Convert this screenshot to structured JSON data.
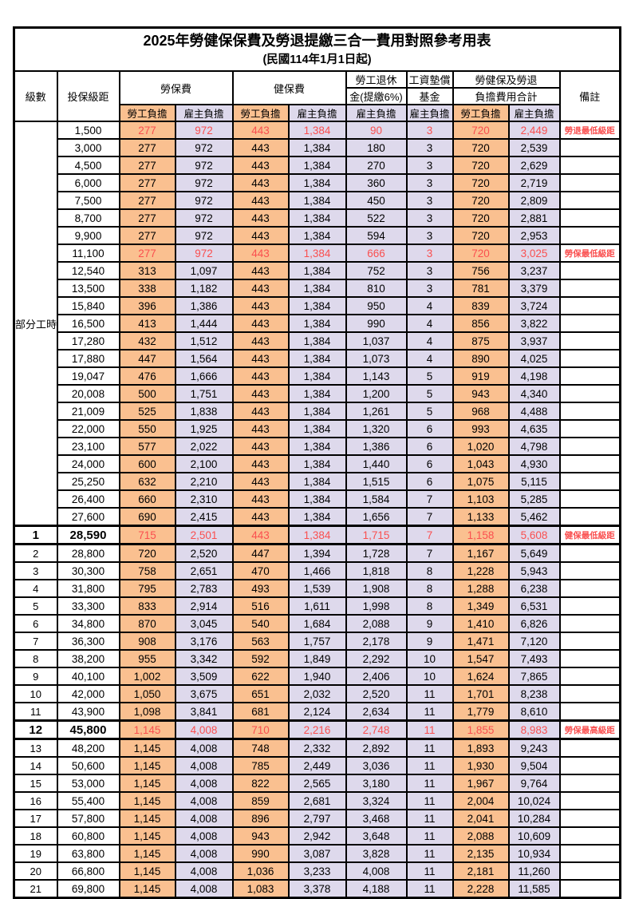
{
  "title": "2025年勞健保保費及勞退提繳三合一費用對照參考用表",
  "subtitle": "(民國114年1月1日起)",
  "header": {
    "level": "級數",
    "bracket": "投保級距",
    "labor_insurance": "勞保費",
    "health_insurance": "健保費",
    "pension_line1": "勞工退休",
    "pension_line2": "金(提繳6%)",
    "wage_fund_line1": "工資墊償",
    "wage_fund_line2": "基金",
    "total_line1": "勞健保及勞退",
    "total_line2": "負擔費用合計",
    "employee_burden": "勞工負擔",
    "employer_burden": "雇主負擔",
    "remark": "備註"
  },
  "part_time": {
    "label": "部分工時",
    "row_span": 23
  },
  "colors": {
    "employee_bg": "#FAC090",
    "employer_bg": "#DED9EC",
    "highlight_red": "#FA4F4F",
    "border": "#000000"
  },
  "rows": [
    {
      "level": "",
      "bracket": "1,500",
      "values": [
        "277",
        "972",
        "443",
        "1,384",
        "90",
        "3",
        "720",
        "2,449"
      ],
      "remark": "勞退最低級距",
      "red": true,
      "bold": false
    },
    {
      "level": "",
      "bracket": "3,000",
      "values": [
        "277",
        "972",
        "443",
        "1,384",
        "180",
        "3",
        "720",
        "2,539"
      ],
      "remark": "",
      "red": false,
      "bold": false
    },
    {
      "level": "",
      "bracket": "4,500",
      "values": [
        "277",
        "972",
        "443",
        "1,384",
        "270",
        "3",
        "720",
        "2,629"
      ],
      "remark": "",
      "red": false,
      "bold": false
    },
    {
      "level": "",
      "bracket": "6,000",
      "values": [
        "277",
        "972",
        "443",
        "1,384",
        "360",
        "3",
        "720",
        "2,719"
      ],
      "remark": "",
      "red": false,
      "bold": false
    },
    {
      "level": "",
      "bracket": "7,500",
      "values": [
        "277",
        "972",
        "443",
        "1,384",
        "450",
        "3",
        "720",
        "2,809"
      ],
      "remark": "",
      "red": false,
      "bold": false
    },
    {
      "level": "",
      "bracket": "8,700",
      "values": [
        "277",
        "972",
        "443",
        "1,384",
        "522",
        "3",
        "720",
        "2,881"
      ],
      "remark": "",
      "red": false,
      "bold": false
    },
    {
      "level": "",
      "bracket": "9,900",
      "values": [
        "277",
        "972",
        "443",
        "1,384",
        "594",
        "3",
        "720",
        "2,953"
      ],
      "remark": "",
      "red": false,
      "bold": false
    },
    {
      "level": "",
      "bracket": "11,100",
      "values": [
        "277",
        "972",
        "443",
        "1,384",
        "666",
        "3",
        "720",
        "3,025"
      ],
      "remark": "勞保最低級距",
      "red": true,
      "bold": false
    },
    {
      "level": "",
      "bracket": "12,540",
      "values": [
        "313",
        "1,097",
        "443",
        "1,384",
        "752",
        "3",
        "756",
        "3,237"
      ],
      "remark": "",
      "red": false,
      "bold": false
    },
    {
      "level": "",
      "bracket": "13,500",
      "values": [
        "338",
        "1,182",
        "443",
        "1,384",
        "810",
        "3",
        "781",
        "3,379"
      ],
      "remark": "",
      "red": false,
      "bold": false
    },
    {
      "level": "",
      "bracket": "15,840",
      "values": [
        "396",
        "1,386",
        "443",
        "1,384",
        "950",
        "4",
        "839",
        "3,724"
      ],
      "remark": "",
      "red": false,
      "bold": false
    },
    {
      "level": "",
      "bracket": "16,500",
      "values": [
        "413",
        "1,444",
        "443",
        "1,384",
        "990",
        "4",
        "856",
        "3,822"
      ],
      "remark": "",
      "red": false,
      "bold": false
    },
    {
      "level": "",
      "bracket": "17,280",
      "values": [
        "432",
        "1,512",
        "443",
        "1,384",
        "1,037",
        "4",
        "875",
        "3,937"
      ],
      "remark": "",
      "red": false,
      "bold": false
    },
    {
      "level": "",
      "bracket": "17,880",
      "values": [
        "447",
        "1,564",
        "443",
        "1,384",
        "1,073",
        "4",
        "890",
        "4,025"
      ],
      "remark": "",
      "red": false,
      "bold": false
    },
    {
      "level": "",
      "bracket": "19,047",
      "values": [
        "476",
        "1,666",
        "443",
        "1,384",
        "1,143",
        "5",
        "919",
        "4,198"
      ],
      "remark": "",
      "red": false,
      "bold": false
    },
    {
      "level": "",
      "bracket": "20,008",
      "values": [
        "500",
        "1,751",
        "443",
        "1,384",
        "1,200",
        "5",
        "943",
        "4,340"
      ],
      "remark": "",
      "red": false,
      "bold": false
    },
    {
      "level": "",
      "bracket": "21,009",
      "values": [
        "525",
        "1,838",
        "443",
        "1,384",
        "1,261",
        "5",
        "968",
        "4,488"
      ],
      "remark": "",
      "red": false,
      "bold": false
    },
    {
      "level": "",
      "bracket": "22,000",
      "values": [
        "550",
        "1,925",
        "443",
        "1,384",
        "1,320",
        "6",
        "993",
        "4,635"
      ],
      "remark": "",
      "red": false,
      "bold": false
    },
    {
      "level": "",
      "bracket": "23,100",
      "values": [
        "577",
        "2,022",
        "443",
        "1,384",
        "1,386",
        "6",
        "1,020",
        "4,798"
      ],
      "remark": "",
      "red": false,
      "bold": false
    },
    {
      "level": "",
      "bracket": "24,000",
      "values": [
        "600",
        "2,100",
        "443",
        "1,384",
        "1,440",
        "6",
        "1,043",
        "4,930"
      ],
      "remark": "",
      "red": false,
      "bold": false
    },
    {
      "level": "",
      "bracket": "25,250",
      "values": [
        "632",
        "2,210",
        "443",
        "1,384",
        "1,515",
        "6",
        "1,075",
        "5,115"
      ],
      "remark": "",
      "red": false,
      "bold": false
    },
    {
      "level": "",
      "bracket": "26,400",
      "values": [
        "660",
        "2,310",
        "443",
        "1,384",
        "1,584",
        "7",
        "1,103",
        "5,285"
      ],
      "remark": "",
      "red": false,
      "bold": false
    },
    {
      "level": "",
      "bracket": "27,600",
      "values": [
        "690",
        "2,415",
        "443",
        "1,384",
        "1,656",
        "7",
        "1,133",
        "5,462"
      ],
      "remark": "",
      "red": false,
      "bold": false
    },
    {
      "level": "1",
      "bracket": "28,590",
      "values": [
        "715",
        "2,501",
        "443",
        "1,384",
        "1,715",
        "7",
        "1,158",
        "5,608"
      ],
      "remark": "健保最低級距",
      "red": true,
      "bold": true
    },
    {
      "level": "2",
      "bracket": "28,800",
      "values": [
        "720",
        "2,520",
        "447",
        "1,394",
        "1,728",
        "7",
        "1,167",
        "5,649"
      ],
      "remark": "",
      "red": false,
      "bold": false
    },
    {
      "level": "3",
      "bracket": "30,300",
      "values": [
        "758",
        "2,651",
        "470",
        "1,466",
        "1,818",
        "8",
        "1,228",
        "5,943"
      ],
      "remark": "",
      "red": false,
      "bold": false
    },
    {
      "level": "4",
      "bracket": "31,800",
      "values": [
        "795",
        "2,783",
        "493",
        "1,539",
        "1,908",
        "8",
        "1,288",
        "6,238"
      ],
      "remark": "",
      "red": false,
      "bold": false
    },
    {
      "level": "5",
      "bracket": "33,300",
      "values": [
        "833",
        "2,914",
        "516",
        "1,611",
        "1,998",
        "8",
        "1,349",
        "6,531"
      ],
      "remark": "",
      "red": false,
      "bold": false
    },
    {
      "level": "6",
      "bracket": "34,800",
      "values": [
        "870",
        "3,045",
        "540",
        "1,684",
        "2,088",
        "9",
        "1,410",
        "6,826"
      ],
      "remark": "",
      "red": false,
      "bold": false
    },
    {
      "level": "7",
      "bracket": "36,300",
      "values": [
        "908",
        "3,176",
        "563",
        "1,757",
        "2,178",
        "9",
        "1,471",
        "7,120"
      ],
      "remark": "",
      "red": false,
      "bold": false
    },
    {
      "level": "8",
      "bracket": "38,200",
      "values": [
        "955",
        "3,342",
        "592",
        "1,849",
        "2,292",
        "10",
        "1,547",
        "7,493"
      ],
      "remark": "",
      "red": false,
      "bold": false
    },
    {
      "level": "9",
      "bracket": "40,100",
      "values": [
        "1,002",
        "3,509",
        "622",
        "1,940",
        "2,406",
        "10",
        "1,624",
        "7,865"
      ],
      "remark": "",
      "red": false,
      "bold": false
    },
    {
      "level": "10",
      "bracket": "42,000",
      "values": [
        "1,050",
        "3,675",
        "651",
        "2,032",
        "2,520",
        "11",
        "1,701",
        "8,238"
      ],
      "remark": "",
      "red": false,
      "bold": false
    },
    {
      "level": "11",
      "bracket": "43,900",
      "values": [
        "1,098",
        "3,841",
        "681",
        "2,124",
        "2,634",
        "11",
        "1,779",
        "8,610"
      ],
      "remark": "",
      "red": false,
      "bold": false
    },
    {
      "level": "12",
      "bracket": "45,800",
      "values": [
        "1,145",
        "4,008",
        "710",
        "2,216",
        "2,748",
        "11",
        "1,855",
        "8,983"
      ],
      "remark": "勞保最高級距",
      "red": true,
      "bold": true
    },
    {
      "level": "13",
      "bracket": "48,200",
      "values": [
        "1,145",
        "4,008",
        "748",
        "2,332",
        "2,892",
        "11",
        "1,893",
        "9,243"
      ],
      "remark": "",
      "red": false,
      "bold": false
    },
    {
      "level": "14",
      "bracket": "50,600",
      "values": [
        "1,145",
        "4,008",
        "785",
        "2,449",
        "3,036",
        "11",
        "1,930",
        "9,504"
      ],
      "remark": "",
      "red": false,
      "bold": false
    },
    {
      "level": "15",
      "bracket": "53,000",
      "values": [
        "1,145",
        "4,008",
        "822",
        "2,565",
        "3,180",
        "11",
        "1,967",
        "9,764"
      ],
      "remark": "",
      "red": false,
      "bold": false
    },
    {
      "level": "16",
      "bracket": "55,400",
      "values": [
        "1,145",
        "4,008",
        "859",
        "2,681",
        "3,324",
        "11",
        "2,004",
        "10,024"
      ],
      "remark": "",
      "red": false,
      "bold": false
    },
    {
      "level": "17",
      "bracket": "57,800",
      "values": [
        "1,145",
        "4,008",
        "896",
        "2,797",
        "3,468",
        "11",
        "2,041",
        "10,284"
      ],
      "remark": "",
      "red": false,
      "bold": false
    },
    {
      "level": "18",
      "bracket": "60,800",
      "values": [
        "1,145",
        "4,008",
        "943",
        "2,942",
        "3,648",
        "11",
        "2,088",
        "10,609"
      ],
      "remark": "",
      "red": false,
      "bold": false
    },
    {
      "level": "19",
      "bracket": "63,800",
      "values": [
        "1,145",
        "4,008",
        "990",
        "3,087",
        "3,828",
        "11",
        "2,135",
        "10,934"
      ],
      "remark": "",
      "red": false,
      "bold": false
    },
    {
      "level": "20",
      "bracket": "66,800",
      "values": [
        "1,145",
        "4,008",
        "1,036",
        "3,233",
        "4,008",
        "11",
        "2,181",
        "11,260"
      ],
      "remark": "",
      "red": false,
      "bold": false
    },
    {
      "level": "21",
      "bracket": "69,800",
      "values": [
        "1,145",
        "4,008",
        "1,083",
        "3,378",
        "4,188",
        "11",
        "2,228",
        "11,585"
      ],
      "remark": "",
      "red": false,
      "bold": false
    }
  ]
}
